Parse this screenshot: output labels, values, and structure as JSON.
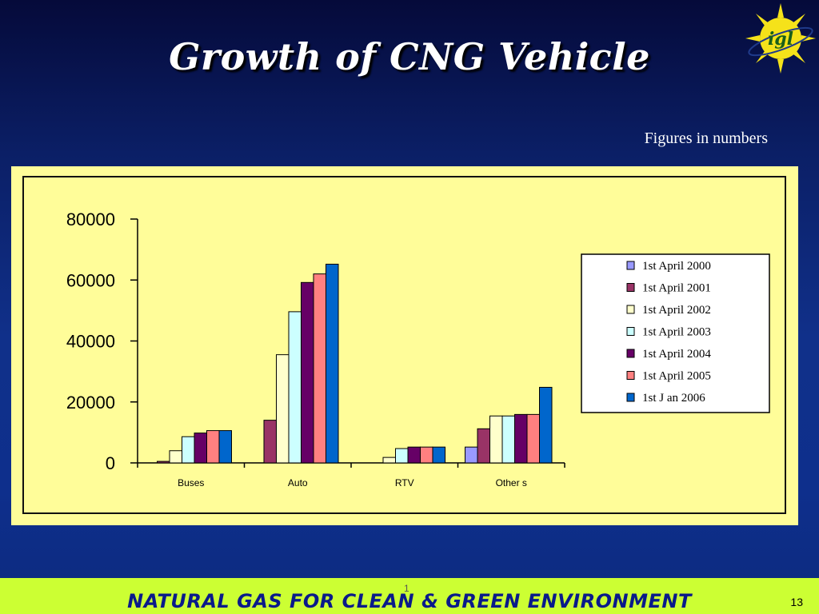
{
  "slide": {
    "title": "Growth of CNG Vehicle",
    "subnote": "Figures in numbers",
    "footer_text": "NATURAL GAS FOR CLEAN & GREEN ENVIRONMENT",
    "footer_small": "1",
    "page_number": "13",
    "logo_text": "igl"
  },
  "colors": {
    "frame": "#fffd99",
    "footer": "#ccff33",
    "footer_text": "#0a1a8a"
  },
  "chart_data": {
    "type": "bar",
    "categories": [
      "Buses",
      "Auto",
      "RTV",
      "Other s"
    ],
    "ylim": [
      0,
      80000
    ],
    "yticks": [
      "80000",
      "60000",
      "40000",
      "20000",
      "0"
    ],
    "legend_position": "right",
    "series": [
      {
        "name": "1st April 2000",
        "color": "#9999ff",
        "values": [
          0,
          0,
          0,
          5200
        ]
      },
      {
        "name": "1st April 2001",
        "color": "#993366",
        "values": [
          500,
          14000,
          0,
          11200
        ]
      },
      {
        "name": "1st April 2002",
        "color": "#ffffcc",
        "values": [
          4000,
          35500,
          1800,
          15400
        ]
      },
      {
        "name": "1st April 2003",
        "color": "#ccffff",
        "values": [
          8600,
          49600,
          4700,
          15400
        ]
      },
      {
        "name": "1st April 2004",
        "color": "#660066",
        "values": [
          9800,
          59200,
          5200,
          15900
        ]
      },
      {
        "name": "1st April 2005",
        "color": "#ff8080",
        "values": [
          10600,
          62000,
          5200,
          15900
        ]
      },
      {
        "name": "1st J an 2006",
        "color": "#0066cc",
        "values": [
          10600,
          65200,
          5200,
          24800
        ]
      }
    ]
  }
}
